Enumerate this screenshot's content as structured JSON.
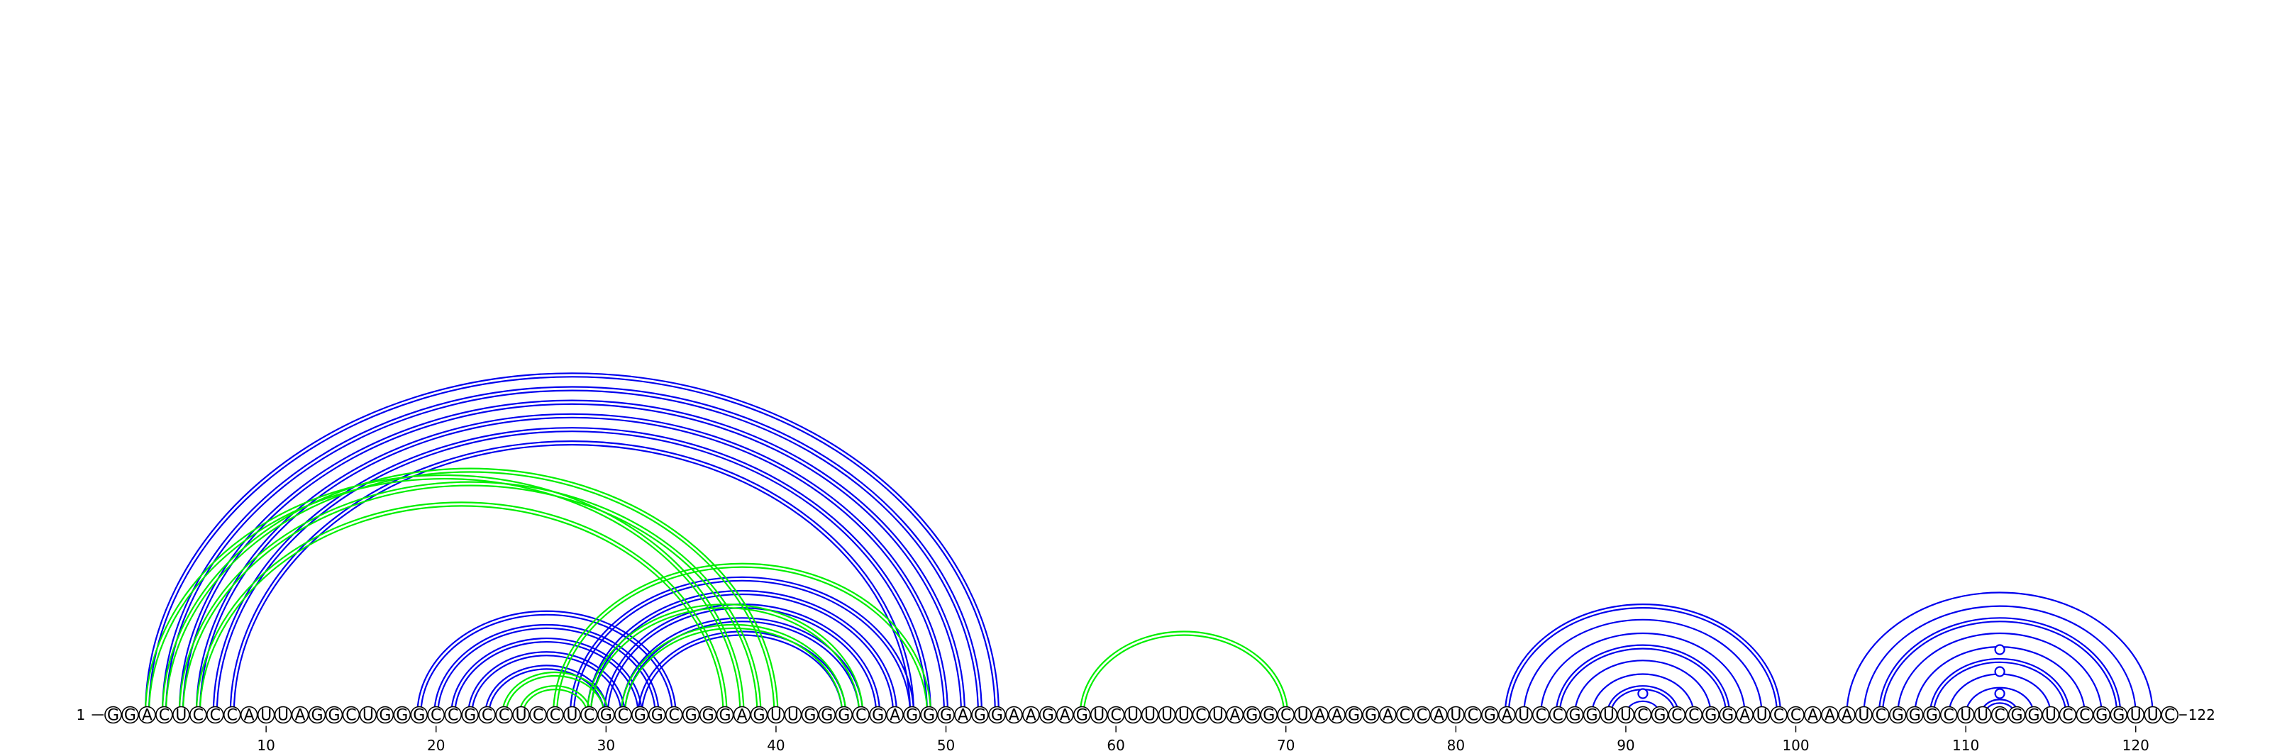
{
  "sequence": "GGACUCCCAUUAGGCUGGGCCGCCUCCUCGCGGCGGGAGUUGGGCGAGGGAGGAAGAGUCUUUUCUAGGCUAAGGACCAUCGAUCCGGUUCGCCGGAUCCAAAUCGGGCUUCGGUCCGGUUC",
  "start_label": "1",
  "end_label": "122",
  "tick_labels": [
    "10",
    "20",
    "30",
    "40",
    "50",
    "60",
    "70",
    "80",
    "90",
    "100",
    "110",
    "120"
  ],
  "tick_positions": [
    10,
    20,
    30,
    40,
    50,
    60,
    70,
    80,
    90,
    100,
    110,
    120
  ],
  "colors": {
    "blue": "#0000ee",
    "green": "#00ee00"
  },
  "arcs": [
    {
      "i": 3,
      "j": 53,
      "color": "blue",
      "double": true
    },
    {
      "i": 4,
      "j": 52,
      "color": "blue",
      "double": true
    },
    {
      "i": 5,
      "j": 51,
      "color": "blue",
      "double": true
    },
    {
      "i": 6,
      "j": 50,
      "color": "blue",
      "double": true
    },
    {
      "i": 7,
      "j": 49,
      "color": "blue",
      "double": true
    },
    {
      "i": 8,
      "j": 48,
      "color": "blue",
      "double": true
    },
    {
      "i": 19,
      "j": 34,
      "color": "blue",
      "double": true
    },
    {
      "i": 20,
      "j": 33,
      "color": "blue",
      "double": true
    },
    {
      "i": 21,
      "j": 32,
      "color": "blue",
      "double": true
    },
    {
      "i": 22,
      "j": 31,
      "color": "blue",
      "double": true
    },
    {
      "i": 23,
      "j": 30,
      "color": "blue",
      "double": true
    },
    {
      "i": 28,
      "j": 48,
      "color": "blue",
      "double": true
    },
    {
      "i": 29,
      "j": 47,
      "color": "blue",
      "double": true
    },
    {
      "i": 30,
      "j": 46,
      "color": "blue",
      "double": true
    },
    {
      "i": 31,
      "j": 45,
      "color": "blue",
      "double": true
    },
    {
      "i": 32,
      "j": 44,
      "color": "blue",
      "double": true
    },
    {
      "i": 3,
      "j": 38,
      "color": "green",
      "double": true
    },
    {
      "i": 4,
      "j": 40,
      "color": "green",
      "double": true
    },
    {
      "i": 5,
      "j": 39,
      "color": "green",
      "double": true
    },
    {
      "i": 6,
      "j": 37,
      "color": "green",
      "double": true
    },
    {
      "i": 24,
      "j": 30,
      "color": "green",
      "double": true
    },
    {
      "i": 25,
      "j": 29,
      "color": "green",
      "double": true
    },
    {
      "i": 27,
      "j": 49,
      "color": "green",
      "double": true
    },
    {
      "i": 29,
      "j": 45,
      "color": "green",
      "double": true
    },
    {
      "i": 31,
      "j": 44,
      "color": "green",
      "double": true
    },
    {
      "i": 58,
      "j": 70,
      "color": "green",
      "double": true
    },
    {
      "i": 83,
      "j": 99,
      "color": "blue",
      "double": true
    },
    {
      "i": 84,
      "j": 98,
      "color": "blue",
      "double": false
    },
    {
      "i": 85,
      "j": 97,
      "color": "blue",
      "double": false
    },
    {
      "i": 86,
      "j": 96,
      "color": "blue",
      "double": true
    },
    {
      "i": 87,
      "j": 95,
      "color": "blue",
      "double": false
    },
    {
      "i": 88,
      "j": 94,
      "color": "blue",
      "double": false
    },
    {
      "i": 89,
      "j": 93,
      "color": "blue",
      "double": true
    },
    {
      "i": 90,
      "j": 92,
      "color": "blue",
      "double": false
    },
    {
      "i": 103,
      "j": 121,
      "color": "blue",
      "double": false
    },
    {
      "i": 104,
      "j": 120,
      "color": "blue",
      "double": false
    },
    {
      "i": 105,
      "j": 119,
      "color": "blue",
      "double": true
    },
    {
      "i": 106,
      "j": 118,
      "color": "blue",
      "double": false
    },
    {
      "i": 107,
      "j": 117,
      "color": "blue",
      "double": false
    },
    {
      "i": 108,
      "j": 116,
      "color": "blue",
      "double": true
    },
    {
      "i": 109,
      "j": 115,
      "color": "blue",
      "double": false
    },
    {
      "i": 110,
      "j": 114,
      "color": "blue",
      "double": false
    },
    {
      "i": 111,
      "j": 113,
      "color": "blue",
      "double": true
    }
  ],
  "markers": [
    {
      "pos": 91,
      "level": 1,
      "color": "blue"
    },
    {
      "pos": 112,
      "level": 1,
      "color": "blue"
    },
    {
      "pos": 112,
      "level": 2,
      "color": "blue"
    },
    {
      "pos": 112,
      "level": 3,
      "color": "blue"
    }
  ]
}
